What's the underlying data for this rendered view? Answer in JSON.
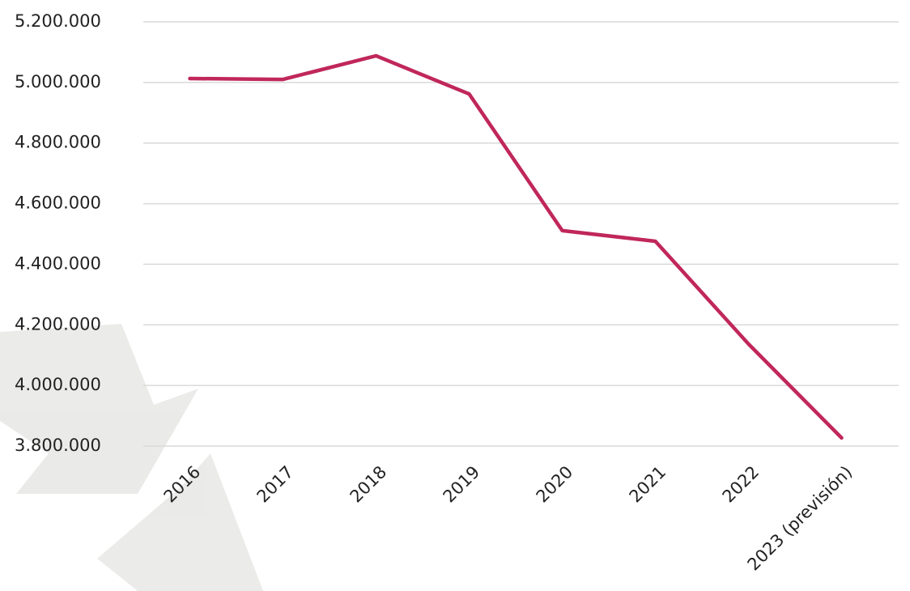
{
  "chart_data": {
    "type": "line",
    "categories": [
      "2016",
      "2017",
      "2018",
      "2019",
      "2020",
      "2021",
      "2022",
      "2023 (previsión)"
    ],
    "series": [
      {
        "color": "#c0275a",
        "values": [
          5013000,
          5010000,
          5088000,
          4962000,
          4511000,
          4476000,
          4137000,
          3827000
        ]
      }
    ],
    "ylim": [
      3800000,
      5200000
    ],
    "yticks": [
      {
        "value": 3800000,
        "label": "3.800.000"
      },
      {
        "value": 4000000,
        "label": "4.000.000"
      },
      {
        "value": 4200000,
        "label": "4.200.000"
      },
      {
        "value": 4400000,
        "label": "4.400.000"
      },
      {
        "value": 4600000,
        "label": "4.600.000"
      },
      {
        "value": 4800000,
        "label": "4.800.000"
      },
      {
        "value": 5000000,
        "label": "5.000.000"
      },
      {
        "value": 5200000,
        "label": "5.200.000"
      }
    ],
    "grid": true
  }
}
